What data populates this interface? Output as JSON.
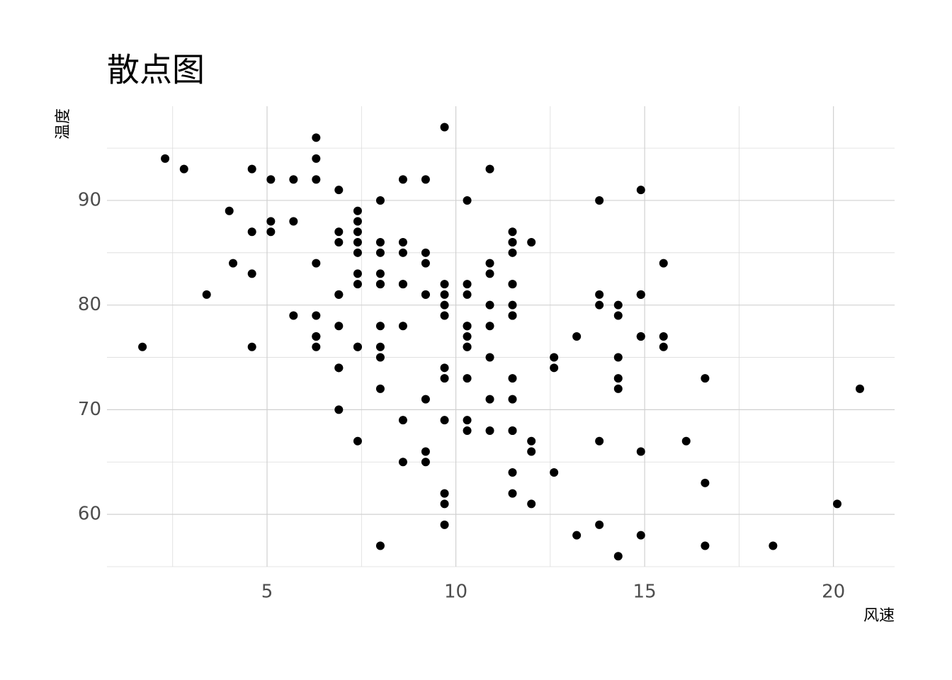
{
  "chart_data": {
    "type": "scatter",
    "title": "散点图",
    "x_label": "风速",
    "y_label": "温度",
    "color": "#000000",
    "grid": true,
    "xlim": [
      0.76,
      21.62
    ],
    "ylim": [
      55.0,
      99.0
    ],
    "xticks": [
      5,
      10,
      15,
      20
    ],
    "yticks": [
      60,
      70,
      80,
      90
    ],
    "x_minor_grid": [
      2.5,
      7.5,
      12.5,
      17.5
    ],
    "y_minor_grid": [
      55,
      65,
      75,
      85,
      95
    ],
    "x": [
      7.4,
      8.0,
      12.6,
      11.5,
      14.3,
      14.9,
      8.6,
      13.8,
      20.1,
      8.6,
      6.9,
      9.7,
      9.2,
      10.9,
      13.2,
      11.5,
      12.0,
      18.4,
      11.5,
      9.7,
      9.7,
      16.6,
      9.7,
      12.0,
      16.6,
      14.9,
      8.0,
      12.0,
      14.9,
      5.7,
      7.4,
      8.6,
      9.7,
      16.1,
      9.2,
      8.6,
      14.3,
      9.7,
      6.9,
      13.8,
      11.5,
      10.9,
      9.2,
      8.0,
      13.8,
      11.5,
      14.9,
      20.7,
      9.2,
      11.5,
      10.3,
      6.3,
      1.7,
      4.6,
      6.3,
      8.0,
      8.0,
      10.3,
      11.5,
      14.9,
      8.0,
      4.1,
      9.2,
      9.2,
      10.9,
      4.6,
      10.9,
      5.1,
      6.3,
      5.7,
      7.4,
      8.6,
      14.3,
      14.9,
      14.9,
      14.3,
      6.9,
      10.3,
      6.3,
      5.1,
      11.5,
      6.9,
      9.7,
      11.5,
      8.6,
      8.0,
      8.6,
      12.0,
      7.4,
      7.4,
      7.4,
      9.2,
      6.9,
      13.8,
      7.4,
      6.9,
      7.4,
      4.6,
      4.0,
      10.3,
      8.0,
      8.6,
      11.5,
      11.5,
      11.5,
      9.7,
      11.5,
      10.3,
      6.3,
      7.4,
      10.9,
      10.3,
      15.5,
      14.3,
      12.6,
      9.7,
      3.4,
      8.0,
      5.7,
      9.7,
      2.3,
      6.3,
      6.3,
      6.9,
      5.1,
      2.8,
      4.6,
      7.4,
      15.5,
      10.9,
      10.3,
      10.9,
      9.7,
      14.9,
      15.5,
      6.3,
      10.9,
      11.5,
      6.9,
      13.8,
      10.3,
      10.3,
      8.0,
      12.6,
      9.2,
      10.3,
      10.3,
      16.6,
      6.9,
      13.2,
      14.3,
      8.0,
      11.5
    ],
    "values": [
      67,
      72,
      74,
      62,
      56,
      66,
      65,
      59,
      61,
      69,
      74,
      69,
      66,
      68,
      58,
      64,
      66,
      57,
      68,
      62,
      59,
      73,
      61,
      61,
      57,
      58,
      57,
      67,
      81,
      79,
      76,
      78,
      74,
      67,
      84,
      85,
      79,
      82,
      87,
      90,
      87,
      93,
      92,
      82,
      80,
      79,
      77,
      72,
      65,
      73,
      76,
      77,
      76,
      76,
      76,
      75,
      78,
      73,
      80,
      77,
      83,
      84,
      85,
      81,
      84,
      83,
      83,
      88,
      92,
      92,
      89,
      82,
      73,
      81,
      91,
      80,
      81,
      82,
      84,
      87,
      85,
      74,
      81,
      82,
      86,
      85,
      82,
      86,
      88,
      86,
      83,
      81,
      81,
      81,
      82,
      86,
      85,
      87,
      89,
      90,
      90,
      92,
      86,
      86,
      82,
      80,
      79,
      77,
      79,
      76,
      78,
      78,
      77,
      72,
      75,
      79,
      81,
      86,
      88,
      97,
      94,
      96,
      94,
      91,
      92,
      93,
      93,
      87,
      84,
      80,
      78,
      75,
      73,
      81,
      76,
      77,
      71,
      71,
      78,
      67,
      76,
      68,
      82,
      64,
      71,
      81,
      69,
      63,
      70,
      77,
      75,
      76,
      68
    ]
  }
}
